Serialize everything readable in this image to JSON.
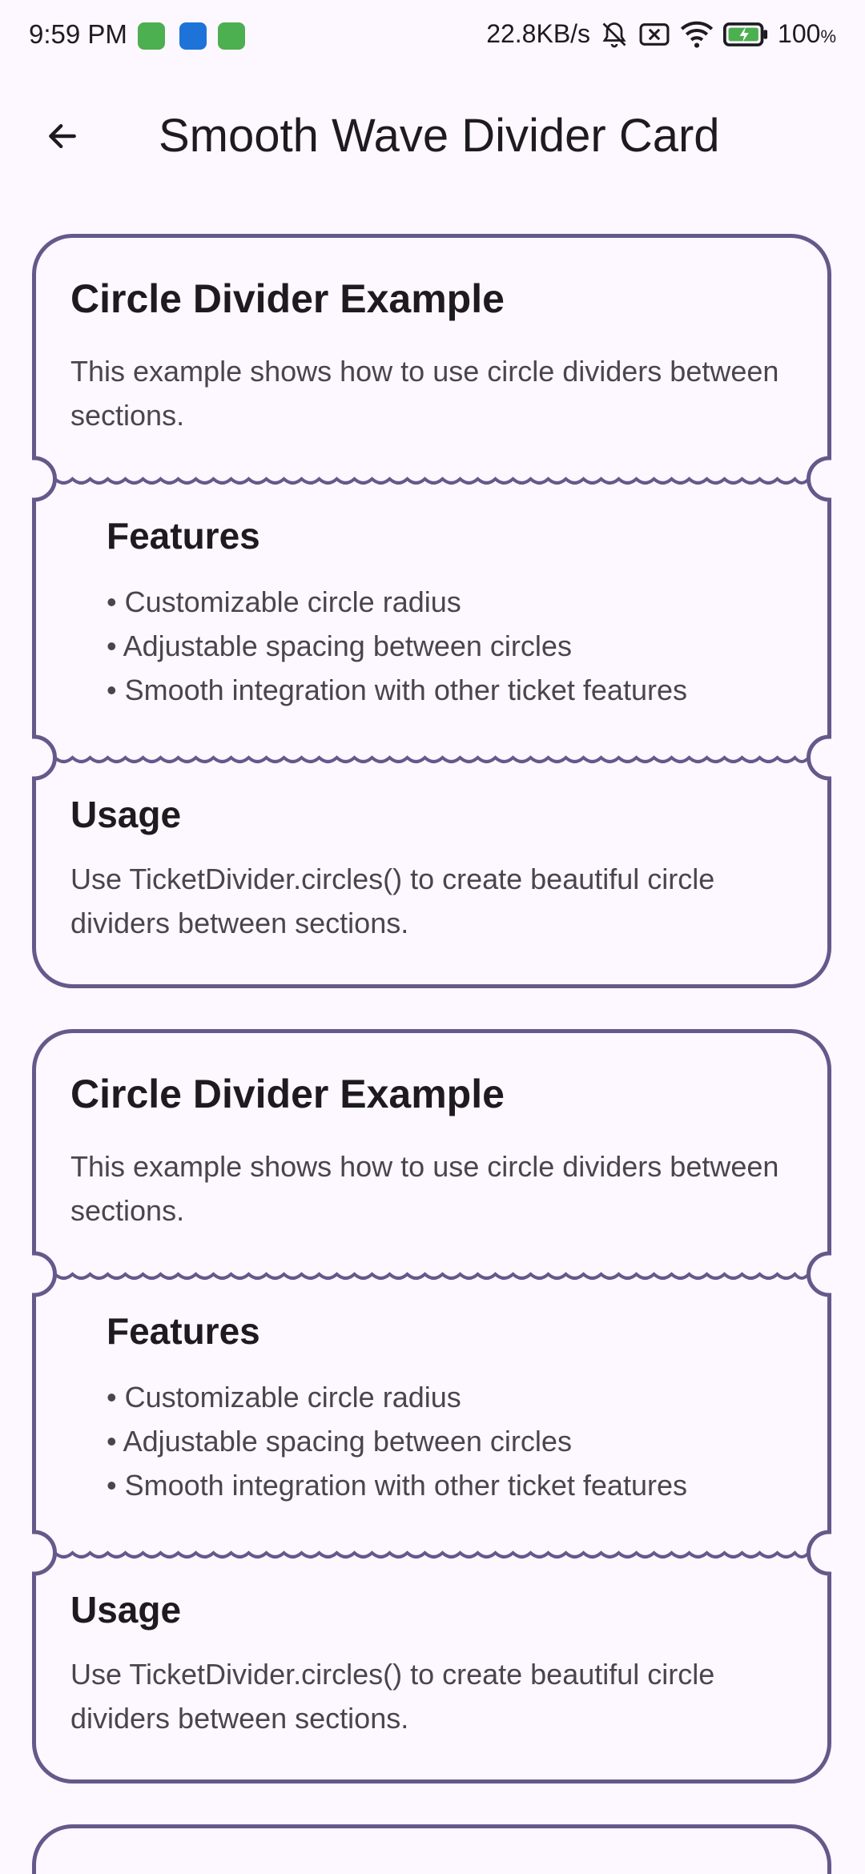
{
  "status_bar": {
    "time": "9:59 PM",
    "network_speed": "22.8KB/s",
    "battery": "100",
    "battery_unit": "%",
    "notification_icons": [
      "cat-app-icon",
      "outlook-icon",
      "cat-app-icon"
    ]
  },
  "app_bar": {
    "title": "Smooth Wave Divider Card",
    "back_icon": "arrow-back-icon"
  },
  "cards": [
    {
      "title": "Circle Divider Example",
      "description": "This example shows how to use circle dividers between sections.",
      "features": {
        "title": "Features",
        "items": [
          "• Customizable circle radius",
          "• Adjustable spacing between circles",
          "• Smooth integration with other ticket features"
        ]
      },
      "usage": {
        "title": "Usage",
        "text": "Use TicketDivider.circles() to create beautiful circle dividers between sections."
      }
    },
    {
      "title": "Circle Divider Example",
      "description": "This example shows how to use circle dividers between sections.",
      "features": {
        "title": "Features",
        "items": [
          "• Customizable circle radius",
          "• Adjustable spacing between circles",
          "• Smooth integration with other ticket features"
        ]
      },
      "usage": {
        "title": "Usage",
        "text": "Use TicketDivider.circles() to create beautiful circle dividers between sections."
      }
    }
  ],
  "colors": {
    "background": "#fdf7ff",
    "card_border": "#65588a",
    "card_fill": "#fdf7ff",
    "title": "#1d1b20",
    "body": "#49454f"
  }
}
